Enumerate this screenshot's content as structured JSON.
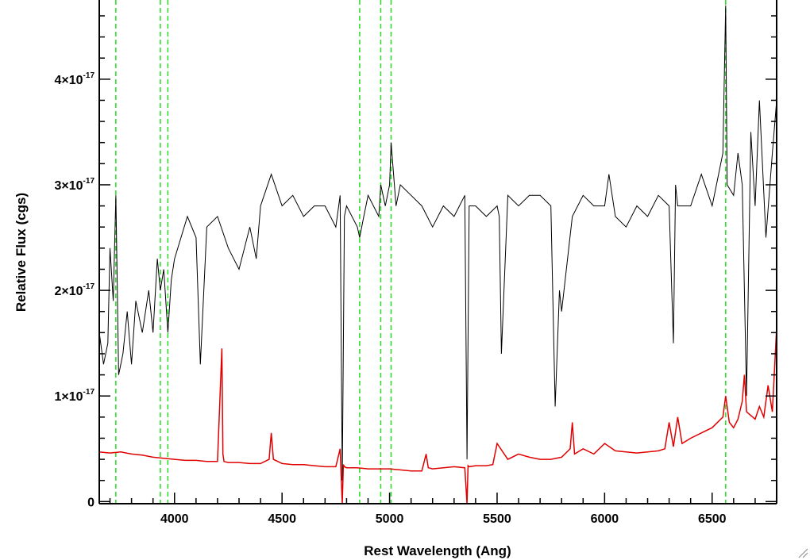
{
  "chart_data": {
    "type": "line",
    "xlabel": "Rest Wavelength (Ang)",
    "ylabel": "Relative Flux (cgs)",
    "xlim": [
      3650,
      6800
    ],
    "ylim": [
      -0.02,
      4.75
    ],
    "y_scale_factor": 1e-17,
    "x_ticks": [
      {
        "value": 4000,
        "label": "4000"
      },
      {
        "value": 4500,
        "label": "4500"
      },
      {
        "value": 5000,
        "label": "5000"
      },
      {
        "value": 5500,
        "label": "5500"
      },
      {
        "value": 6000,
        "label": "6000"
      },
      {
        "value": 6500,
        "label": "6500"
      }
    ],
    "y_ticks": [
      {
        "value": 0,
        "label": "0",
        "exp": ""
      },
      {
        "value": 1,
        "label": "1×10",
        "exp": "-17"
      },
      {
        "value": 2,
        "label": "2×10",
        "exp": "-17"
      },
      {
        "value": 3,
        "label": "3×10",
        "exp": "-17"
      },
      {
        "value": 4,
        "label": "4×10",
        "exp": "-17"
      }
    ],
    "grid": false,
    "vertical_lines": [
      3727,
      3934,
      3969,
      4861,
      4959,
      5007,
      6563
    ],
    "series": [
      {
        "color": "#000000",
        "x": [
          3650,
          3670,
          3690,
          3700,
          3715,
          3727,
          3740,
          3760,
          3780,
          3800,
          3820,
          3850,
          3880,
          3900,
          3920,
          3934,
          3950,
          3969,
          3985,
          4000,
          4030,
          4060,
          4100,
          4120,
          4150,
          4200,
          4250,
          4300,
          4350,
          4380,
          4400,
          4450,
          4500,
          4550,
          4600,
          4650,
          4700,
          4750,
          4770,
          4780,
          4790,
          4800,
          4850,
          4861,
          4880,
          4900,
          4950,
          4959,
          4980,
          5000,
          5007,
          5030,
          5050,
          5100,
          5150,
          5200,
          5250,
          5300,
          5350,
          5360,
          5370,
          5400,
          5450,
          5500,
          5510,
          5520,
          5550,
          5600,
          5650,
          5700,
          5750,
          5770,
          5790,
          5800,
          5850,
          5900,
          5950,
          6000,
          6020,
          6050,
          6100,
          6150,
          6200,
          6250,
          6300,
          6320,
          6330,
          6340,
          6400,
          6450,
          6500,
          6550,
          6563,
          6570,
          6600,
          6620,
          6640,
          6660,
          6680,
          6700,
          6720,
          6750,
          6780,
          6800
        ],
        "y": [
          1.6,
          1.3,
          1.5,
          2.4,
          1.9,
          2.9,
          1.2,
          1.4,
          1.8,
          1.3,
          1.9,
          1.6,
          2.0,
          1.6,
          2.3,
          2.0,
          2.2,
          1.6,
          2.1,
          2.3,
          2.5,
          2.7,
          2.5,
          1.3,
          2.6,
          2.7,
          2.4,
          2.2,
          2.6,
          2.3,
          2.8,
          3.1,
          2.8,
          2.9,
          2.7,
          2.8,
          2.8,
          2.6,
          2.9,
          0.2,
          2.7,
          2.8,
          2.6,
          2.5,
          2.7,
          2.9,
          2.7,
          3.0,
          2.8,
          3.0,
          3.4,
          2.8,
          3.0,
          2.9,
          2.8,
          2.6,
          2.8,
          2.7,
          2.9,
          0.4,
          2.8,
          2.8,
          2.7,
          2.8,
          2.7,
          1.4,
          2.9,
          2.8,
          2.9,
          2.9,
          2.8,
          0.9,
          2.0,
          1.8,
          2.7,
          2.9,
          2.8,
          2.8,
          3.1,
          2.7,
          2.6,
          2.8,
          2.7,
          2.9,
          2.8,
          1.5,
          3.0,
          2.8,
          2.8,
          3.1,
          2.8,
          3.3,
          4.7,
          3.0,
          2.9,
          3.3,
          3.0,
          1.0,
          3.5,
          2.8,
          3.8,
          2.5,
          3.3,
          3.8
        ]
      },
      {
        "color": "#e00000",
        "x": [
          3650,
          3700,
          3750,
          3800,
          3850,
          3900,
          3950,
          4000,
          4050,
          4100,
          4150,
          4200,
          4220,
          4225,
          4230,
          4250,
          4300,
          4350,
          4400,
          4440,
          4450,
          4460,
          4500,
          4550,
          4600,
          4650,
          4700,
          4750,
          4770,
          4780,
          4785,
          4790,
          4800,
          4850,
          4900,
          4950,
          5000,
          5050,
          5100,
          5150,
          5170,
          5180,
          5200,
          5250,
          5300,
          5350,
          5360,
          5365,
          5370,
          5400,
          5450,
          5480,
          5500,
          5550,
          5600,
          5650,
          5700,
          5750,
          5800,
          5840,
          5850,
          5860,
          5900,
          5950,
          6000,
          6050,
          6100,
          6150,
          6200,
          6250,
          6280,
          6300,
          6320,
          6340,
          6360,
          6400,
          6450,
          6500,
          6550,
          6563,
          6580,
          6600,
          6620,
          6640,
          6650,
          6660,
          6700,
          6720,
          6740,
          6760,
          6780,
          6800
        ],
        "y": [
          0.47,
          0.46,
          0.47,
          0.45,
          0.44,
          0.42,
          0.41,
          0.4,
          0.39,
          0.39,
          0.38,
          0.38,
          1.45,
          0.45,
          0.38,
          0.37,
          0.37,
          0.36,
          0.36,
          0.4,
          0.65,
          0.4,
          0.36,
          0.35,
          0.35,
          0.34,
          0.33,
          0.33,
          0.5,
          -0.02,
          0.35,
          0.33,
          0.32,
          0.32,
          0.31,
          0.31,
          0.31,
          0.3,
          0.29,
          0.29,
          0.45,
          0.32,
          0.31,
          0.32,
          0.33,
          0.32,
          -0.02,
          0.34,
          0.33,
          0.34,
          0.34,
          0.35,
          0.55,
          0.4,
          0.45,
          0.42,
          0.4,
          0.4,
          0.42,
          0.5,
          0.75,
          0.45,
          0.5,
          0.45,
          0.55,
          0.48,
          0.47,
          0.46,
          0.47,
          0.48,
          0.5,
          0.75,
          0.52,
          0.8,
          0.55,
          0.6,
          0.65,
          0.7,
          0.8,
          1.0,
          0.75,
          0.7,
          0.78,
          0.95,
          1.2,
          0.85,
          0.78,
          0.9,
          0.8,
          1.1,
          0.85,
          1.65
        ]
      }
    ]
  }
}
